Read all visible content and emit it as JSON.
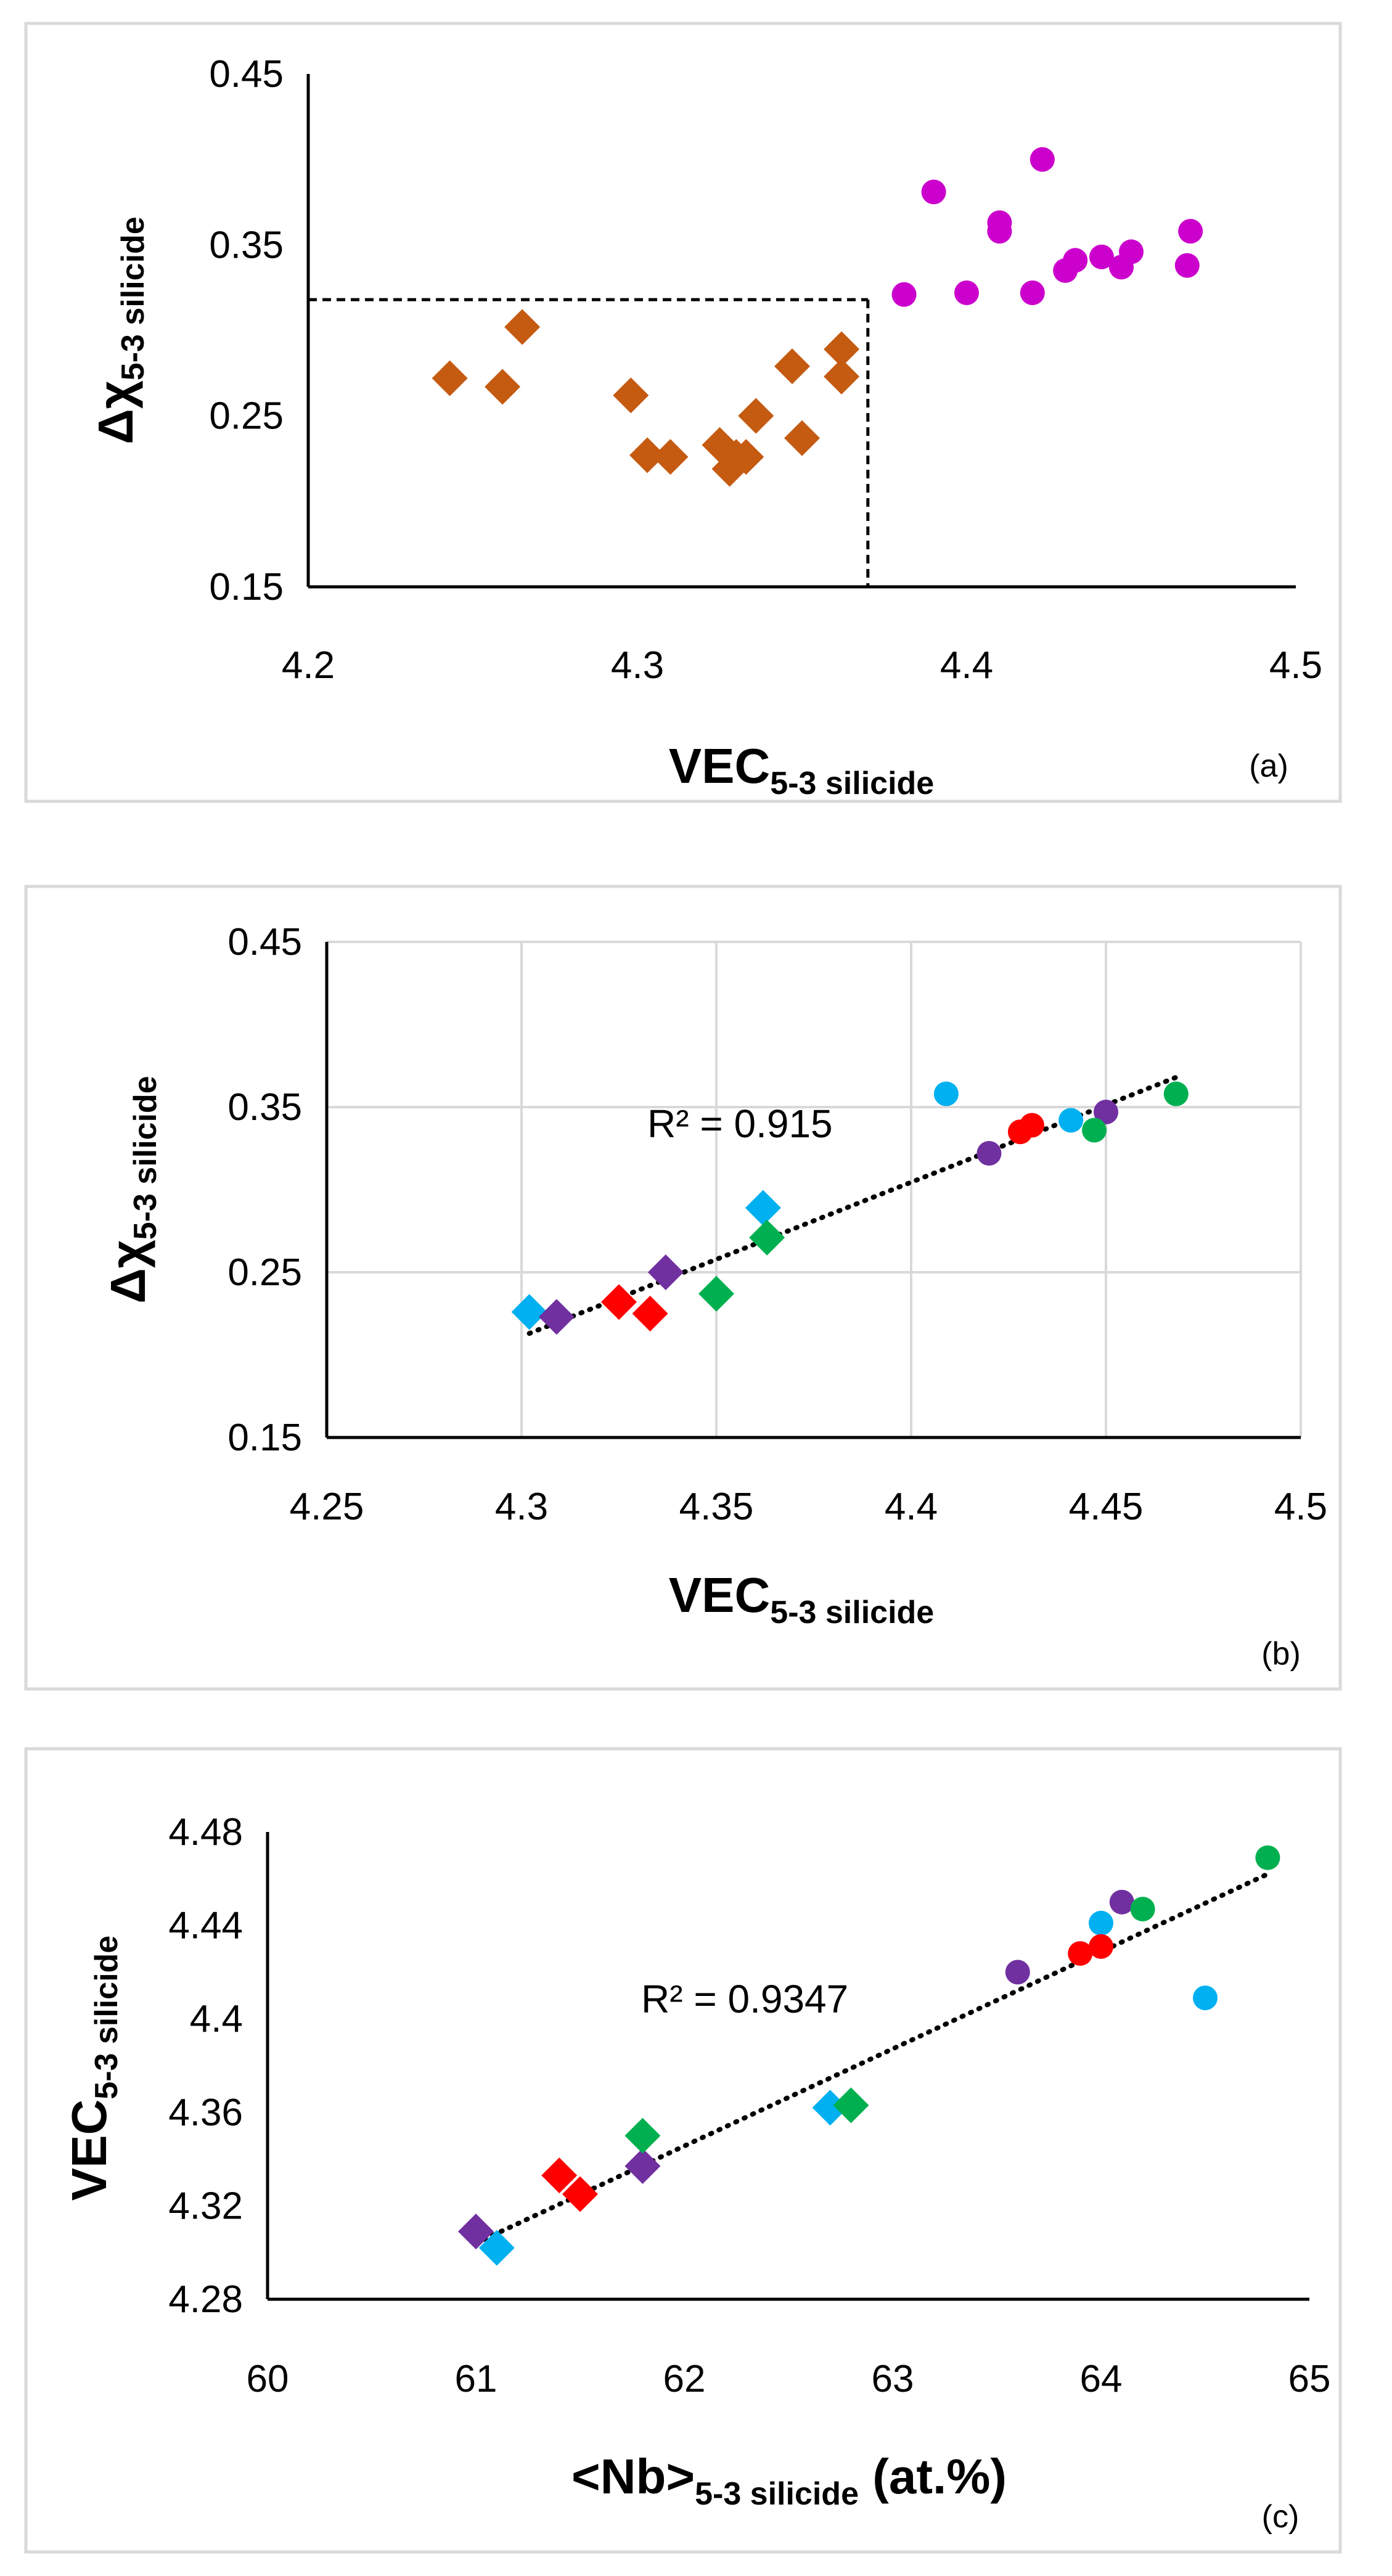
{
  "chart_data": [
    {
      "type": "scatter",
      "panel_label": "(a)",
      "xlabel": {
        "main": "VEC",
        "sub": "5-3 silicide"
      },
      "ylabel": {
        "main": "Δχ",
        "sub": "5-3 silicide"
      },
      "xlim": [
        4.2,
        4.5
      ],
      "ylim": [
        0.15,
        0.45
      ],
      "xticks": [
        "4.2",
        "4.3",
        "4.4",
        "4.5"
      ],
      "yticks": [
        "0.15",
        "0.25",
        "0.35",
        "0.45"
      ],
      "threshold": {
        "x": 4.37,
        "y": 0.318,
        "style": "dashed"
      },
      "series": [
        {
          "name": "diamonds",
          "marker": "diamond",
          "color": "#C55A11",
          "points": [
            [
              4.243,
              0.272
            ],
            [
              4.259,
              0.267
            ],
            [
              4.265,
              0.302
            ],
            [
              4.298,
              0.262
            ],
            [
              4.303,
              0.227
            ],
            [
              4.31,
              0.226
            ],
            [
              4.325,
              0.233
            ],
            [
              4.328,
              0.219
            ],
            [
              4.333,
              0.226
            ],
            [
              4.336,
              0.25
            ],
            [
              4.347,
              0.279
            ],
            [
              4.35,
              0.237
            ],
            [
              4.362,
              0.289
            ],
            [
              4.362,
              0.273
            ],
            [
              4.33,
              0.226
            ]
          ]
        },
        {
          "name": "circles",
          "marker": "circle",
          "color": "#CC00CC",
          "points": [
            [
              4.381,
              0.321
            ],
            [
              4.39,
              0.381
            ],
            [
              4.4,
              0.322
            ],
            [
              4.41,
              0.358
            ],
            [
              4.41,
              0.363
            ],
            [
              4.42,
              0.322
            ],
            [
              4.423,
              0.4
            ],
            [
              4.43,
              0.335
            ],
            [
              4.433,
              0.341
            ],
            [
              4.441,
              0.343
            ],
            [
              4.447,
              0.337
            ],
            [
              4.45,
              0.346
            ],
            [
              4.467,
              0.338
            ],
            [
              4.468,
              0.358
            ]
          ]
        }
      ]
    },
    {
      "type": "scatter",
      "panel_label": "(b)",
      "xlabel": {
        "main": "VEC",
        "sub": "5-3 silicide"
      },
      "ylabel": {
        "main": "Δχ",
        "sub": "5-3 silicide"
      },
      "xlim": [
        4.25,
        4.5
      ],
      "ylim": [
        0.15,
        0.45
      ],
      "xticks": [
        "4.25",
        "4.3",
        "4.35",
        "4.4",
        "4.45",
        "4.5"
      ],
      "yticks": [
        "0.15",
        "0.25",
        "0.35",
        "0.45"
      ],
      "grid": true,
      "trendline": {
        "from": [
          4.302,
          0.213
        ],
        "to": [
          4.468,
          0.368
        ],
        "label": "R² = 0.915"
      },
      "series": [
        {
          "name": "blue",
          "color": "#00B0F0",
          "points": [
            {
              "x": 4.302,
              "y": 0.226,
              "m": "diamond"
            },
            {
              "x": 4.362,
              "y": 0.289,
              "m": "diamond"
            },
            {
              "x": 4.409,
              "y": 0.358,
              "m": "circle"
            },
            {
              "x": 4.441,
              "y": 0.342,
              "m": "circle"
            }
          ]
        },
        {
          "name": "purple",
          "color": "#7030A0",
          "points": [
            {
              "x": 4.309,
              "y": 0.223,
              "m": "diamond"
            },
            {
              "x": 4.337,
              "y": 0.25,
              "m": "diamond"
            },
            {
              "x": 4.42,
              "y": 0.322,
              "m": "circle"
            },
            {
              "x": 4.45,
              "y": 0.347,
              "m": "circle"
            }
          ]
        },
        {
          "name": "red",
          "color": "#FF0000",
          "points": [
            {
              "x": 4.325,
              "y": 0.232,
              "m": "diamond"
            },
            {
              "x": 4.333,
              "y": 0.225,
              "m": "diamond"
            },
            {
              "x": 4.428,
              "y": 0.335,
              "m": "circle"
            },
            {
              "x": 4.431,
              "y": 0.339,
              "m": "circle"
            }
          ]
        },
        {
          "name": "green",
          "color": "#00B050",
          "points": [
            {
              "x": 4.35,
              "y": 0.237,
              "m": "diamond"
            },
            {
              "x": 4.363,
              "y": 0.271,
              "m": "diamond"
            },
            {
              "x": 4.447,
              "y": 0.336,
              "m": "circle"
            },
            {
              "x": 4.468,
              "y": 0.358,
              "m": "circle"
            }
          ]
        }
      ]
    },
    {
      "type": "scatter",
      "panel_label": "(c)",
      "xlabel": {
        "main": "<Nb>",
        "sub": "5-3 silicide",
        "suffix": " (at.%)"
      },
      "ylabel": {
        "main": "VEC",
        "sub": "5-3 silicide"
      },
      "xlim": [
        60,
        65
      ],
      "ylim": [
        4.28,
        4.48
      ],
      "xticks": [
        "60",
        "61",
        "62",
        "63",
        "64",
        "65"
      ],
      "yticks": [
        "4.28",
        "4.32",
        "4.36",
        "4.4",
        "4.44",
        "4.48"
      ],
      "trendline": {
        "from": [
          61.0,
          4.304
        ],
        "to": [
          64.8,
          4.462
        ],
        "label": "R² = 0.9347"
      },
      "series": [
        {
          "name": "purple",
          "color": "#7030A0",
          "points": [
            {
              "x": 61.0,
              "y": 4.309,
              "m": "diamond"
            },
            {
              "x": 61.8,
              "y": 4.337,
              "m": "diamond"
            },
            {
              "x": 63.6,
              "y": 4.42,
              "m": "circle"
            },
            {
              "x": 64.1,
              "y": 4.45,
              "m": "circle"
            }
          ]
        },
        {
          "name": "blue",
          "color": "#00B0F0",
          "points": [
            {
              "x": 61.1,
              "y": 4.302,
              "m": "diamond"
            },
            {
              "x": 62.7,
              "y": 4.362,
              "m": "diamond"
            },
            {
              "x": 64.0,
              "y": 4.441,
              "m": "circle"
            },
            {
              "x": 64.5,
              "y": 4.409,
              "m": "circle"
            }
          ]
        },
        {
          "name": "red",
          "color": "#FF0000",
          "points": [
            {
              "x": 61.4,
              "y": 4.333,
              "m": "diamond"
            },
            {
              "x": 61.5,
              "y": 4.325,
              "m": "diamond"
            },
            {
              "x": 63.9,
              "y": 4.428,
              "m": "circle"
            },
            {
              "x": 64.0,
              "y": 4.431,
              "m": "circle"
            }
          ]
        },
        {
          "name": "green",
          "color": "#00B050",
          "points": [
            {
              "x": 61.8,
              "y": 4.35,
              "m": "diamond"
            },
            {
              "x": 62.8,
              "y": 4.363,
              "m": "diamond"
            },
            {
              "x": 64.2,
              "y": 4.447,
              "m": "circle"
            },
            {
              "x": 64.8,
              "y": 4.469,
              "m": "circle"
            }
          ]
        }
      ]
    }
  ]
}
